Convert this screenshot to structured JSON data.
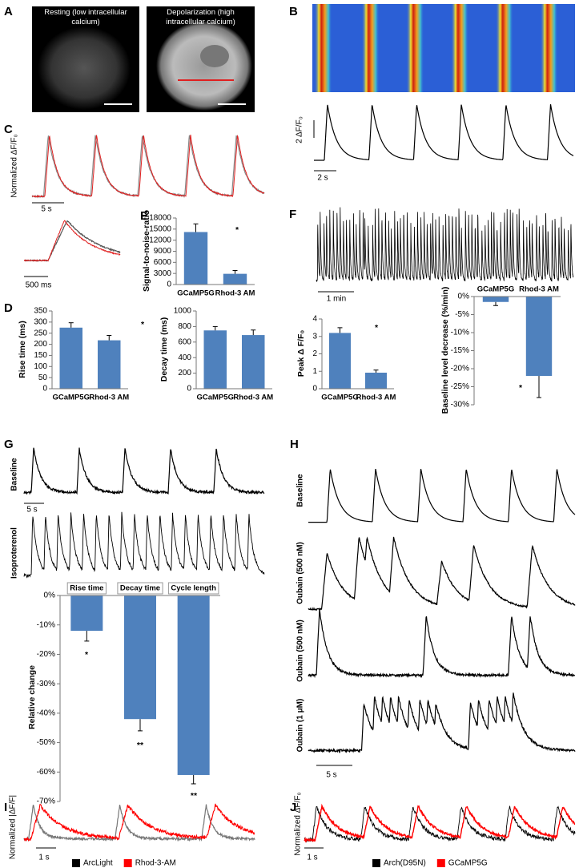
{
  "panel_labels": [
    "A",
    "B",
    "C",
    "D",
    "E",
    "F",
    "G",
    "H",
    "I",
    "J"
  ],
  "panel_a": {
    "captions": [
      "Resting (low intracellular calcium)",
      "Depolarization (high intracellular calcium)"
    ]
  },
  "panel_b": {
    "y_scale": "2 ΔF/F₀",
    "x_scale": "2 s"
  },
  "panel_c": {
    "y_label": "Normalized ΔF/F₀",
    "x_scale_top": "5 s",
    "x_scale_bottom": "500 ms"
  },
  "panel_f": {
    "x_scale": "1 min"
  },
  "panel_g": {
    "row_labels": [
      "Baseline",
      "Isoproterenol"
    ],
    "x_scale": "5 s"
  },
  "panel_h": {
    "row_labels": [
      "Baseline",
      "Oubain (500 nM)",
      "Oubain (500 nM)",
      "Oubain (1 μM)"
    ],
    "x_scale": "5 s"
  },
  "panel_i": {
    "y_label": "Normalized |ΔF/F|",
    "x_scale": "1 s",
    "legend": [
      {
        "name": "ArcLight",
        "color": "#000000"
      },
      {
        "name": "Rhod-3-AM",
        "color": "#ff0000"
      }
    ]
  },
  "panel_j": {
    "y_label": "Normalized ΔF/F₀",
    "x_scale": "1 s",
    "legend": [
      {
        "name": "Arch(D95N)",
        "color": "#000000"
      },
      {
        "name": "GCaMP5G",
        "color": "#ff0000"
      }
    ]
  },
  "chart_data": [
    {
      "type": "bar",
      "y_label": "Rise time (ms)",
      "categories": [
        "GCaMP5G",
        "Rhod-3 AM"
      ],
      "values": [
        275,
        218
      ],
      "errors": [
        22,
        22
      ],
      "color": "#4f81bd",
      "ylim": [
        0,
        350
      ],
      "yticks": [
        0,
        50,
        100,
        150,
        200,
        250,
        300,
        350
      ],
      "annotations": [
        "*"
      ]
    },
    {
      "type": "bar",
      "y_label": "Decay time (ms)",
      "categories": [
        "GCaMP5G",
        "Rhod-3 AM"
      ],
      "values": [
        750,
        690
      ],
      "errors": [
        50,
        65
      ],
      "color": "#4f81bd",
      "ylim": [
        0,
        1000
      ],
      "yticks": [
        0,
        200,
        400,
        600,
        800,
        1000
      ]
    },
    {
      "type": "bar",
      "y_label": "Signal-to-noise-ratio",
      "categories": [
        "GCaMP5G",
        "Rhod-3 AM"
      ],
      "values": [
        14200,
        2900
      ],
      "errors": [
        2200,
        900
      ],
      "color": "#4f81bd",
      "ylim": [
        0,
        18000
      ],
      "yticks": [
        0,
        3000,
        6000,
        9000,
        12000,
        15000,
        18000
      ],
      "annotations": [
        "*"
      ]
    },
    {
      "type": "bar",
      "y_label": "Peak Δ F/F₀",
      "categories": [
        "GCaMP5G",
        "Rhod-3 AM"
      ],
      "values": [
        3.2,
        0.92
      ],
      "errors": [
        0.3,
        0.15
      ],
      "color": "#4f81bd",
      "ylim": [
        0,
        4
      ],
      "yticks": [
        0,
        1,
        2,
        3,
        4
      ],
      "annotations": [
        "*"
      ]
    },
    {
      "type": "bar",
      "y_label": "Baseline level decrease (%/min)",
      "categories": [
        "GCaMP5G",
        "Rhod-3 AM"
      ],
      "values": [
        -1.5,
        -22
      ],
      "errors": [
        1,
        6
      ],
      "color": "#4f81bd",
      "ylim": [
        -30,
        0
      ],
      "yticks": [
        {
          "value": 0,
          "label": "0%"
        },
        {
          "value": -5,
          "label": "-5%"
        },
        {
          "value": -10,
          "label": "-10%"
        },
        {
          "value": -15,
          "label": "-15%"
        },
        {
          "value": -20,
          "label": "-20%"
        },
        {
          "value": -25,
          "label": "-25%"
        },
        {
          "value": -30,
          "label": "-30%"
        }
      ],
      "annotations": [
        "*"
      ]
    },
    {
      "type": "bar",
      "y_label": "Relative change",
      "categories": [
        "Rise time",
        "Decay time",
        "Cycle length"
      ],
      "values": [
        -12,
        -42,
        -61
      ],
      "errors": [
        3.5,
        4,
        3
      ],
      "color": "#4f81bd",
      "ylim": [
        -70,
        0
      ],
      "yticks": [
        {
          "value": 0,
          "label": "0%"
        },
        {
          "value": -10,
          "label": "-10%"
        },
        {
          "value": -20,
          "label": "-20%"
        },
        {
          "value": -30,
          "label": "-30%"
        },
        {
          "value": -40,
          "label": "-40%"
        },
        {
          "value": -50,
          "label": "-50%"
        },
        {
          "value": -60,
          "label": "-60%"
        },
        {
          "value": -70,
          "label": "-70%"
        }
      ],
      "annotations": [
        "*",
        "**",
        "**"
      ]
    }
  ]
}
